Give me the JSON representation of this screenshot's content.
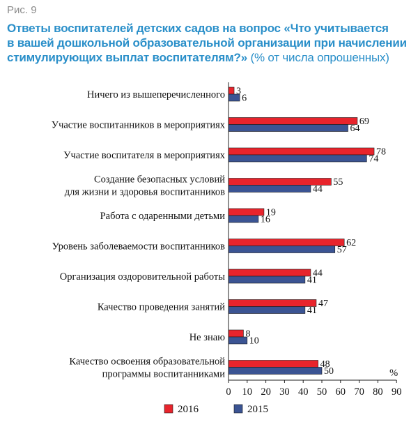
{
  "figure_label": "Рис. 9",
  "title_lines": [
    "Ответы воспитателей детских садов на вопрос «Что учитывается",
    "в вашей дошкольной образовательной организации при начислении",
    "стимулирующих выплат воспитателям?»"
  ],
  "subtitle": "(% от числа опрошенных)",
  "colors": {
    "series_2016": "#e8242c",
    "series_2015": "#3b5493",
    "axis": "#222222"
  },
  "chart_data": {
    "type": "bar",
    "orientation": "horizontal",
    "categories": [
      [
        "Ничего из вышеперечисленного"
      ],
      [
        "Участие воспитанников в мероприятиях"
      ],
      [
        "Участие воспитателя в мероприятиях"
      ],
      [
        "Создание безопасных условий",
        "для жизни и здоровья воспитанников"
      ],
      [
        "Работа с одаренными детьми"
      ],
      [
        "Уровень заболеваемости воспитанников"
      ],
      [
        "Организация оздоровительной работы"
      ],
      [
        "Качество проведения занятий"
      ],
      [
        "Не знаю"
      ],
      [
        "Качество освоения образовательной",
        "программы воспитанниками"
      ]
    ],
    "series": [
      {
        "name": "2016",
        "values": [
          3,
          69,
          78,
          55,
          19,
          62,
          44,
          47,
          8,
          48
        ]
      },
      {
        "name": "2015",
        "values": [
          6,
          64,
          74,
          44,
          16,
          57,
          41,
          41,
          10,
          50
        ]
      }
    ],
    "xlim": [
      0,
      90
    ],
    "xticks": [
      0,
      10,
      20,
      30,
      40,
      50,
      60,
      70,
      80,
      90
    ],
    "xlabel": "%",
    "legend_position": "bottom-left"
  }
}
